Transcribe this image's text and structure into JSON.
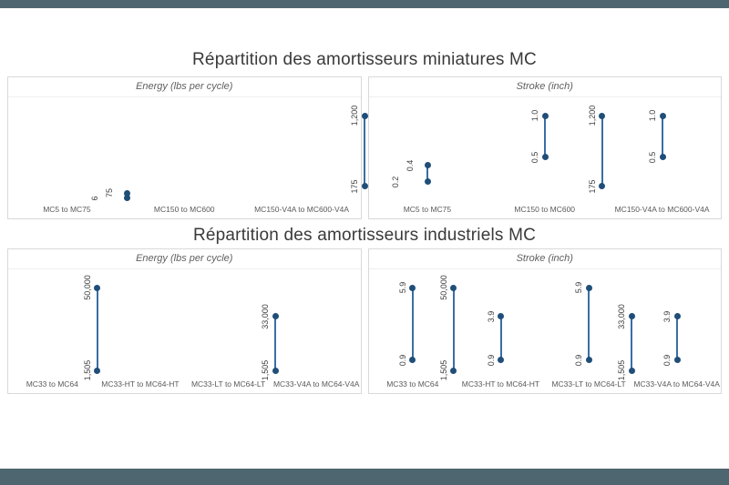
{
  "colors": {
    "accent_bar": "#4e666f",
    "dot": "#1f4e79",
    "line": "#3a6ea5",
    "panel_border": "#d9d9d9",
    "title_text": "#3a3a3a",
    "label_text": "#5a5a5a"
  },
  "chart_data": {
    "type": "dumbbell",
    "description": "Two range (dumbbell) charts, each split into two panels showing min-max ranges per product family",
    "charts": [
      {
        "title": "Répartition des amortisseurs miniatures MC",
        "panels": [
          {
            "header": "Energy (lbs per cycle)",
            "ymax": 1200,
            "items": [
              {
                "category": "MC5 to MC75",
                "min": 6,
                "max": 75,
                "min_label": "6",
                "max_label": "75"
              },
              {
                "category": "MC150 to MC600",
                "min": 175,
                "max": 1200,
                "min_label": "175",
                "max_label": "1,200"
              },
              {
                "category": "MC150-V4A to MC600-V4A",
                "min": 175,
                "max": 1200,
                "min_label": "175",
                "max_label": "1,200"
              }
            ]
          },
          {
            "header": "Stroke (inch)",
            "ymax": 1.0,
            "items": [
              {
                "category": "MC5 to MC75",
                "min": 0.2,
                "max": 0.4,
                "min_label": "0.2",
                "max_label": "0.4"
              },
              {
                "category": "MC150 to MC600",
                "min": 0.5,
                "max": 1.0,
                "min_label": "0.5",
                "max_label": "1.0"
              },
              {
                "category": "MC150-V4A to MC600-V4A",
                "min": 0.5,
                "max": 1.0,
                "min_label": "0.5",
                "max_label": "1.0"
              }
            ]
          }
        ]
      },
      {
        "title": "Répartition des amortisseurs industriels MC",
        "panels": [
          {
            "header": "Energy (lbs per cycle)",
            "ymax": 50000,
            "items": [
              {
                "category": "MC33 to MC64",
                "min": 1505,
                "max": 50000,
                "min_label": "1,505",
                "max_label": "50,000"
              },
              {
                "category": "MC33-HT to MC64-HT",
                "min": 1505,
                "max": 33000,
                "min_label": "1,505",
                "max_label": "33,000"
              },
              {
                "category": "MC33-LT to MC64-LT",
                "min": 1505,
                "max": 50000,
                "min_label": "1,505",
                "max_label": "50,000"
              },
              {
                "category": "MC33-V4A to MC64-V4A",
                "min": 1505,
                "max": 33000,
                "min_label": "1,505",
                "max_label": "33,000"
              }
            ]
          },
          {
            "header": "Stroke (inch)",
            "ymax": 5.9,
            "items": [
              {
                "category": "MC33 to MC64",
                "min": 0.9,
                "max": 5.9,
                "min_label": "0.9",
                "max_label": "5.9"
              },
              {
                "category": "MC33-HT to MC64-HT",
                "min": 0.9,
                "max": 3.9,
                "min_label": "0.9",
                "max_label": "3.9"
              },
              {
                "category": "MC33-LT to MC64-LT",
                "min": 0.9,
                "max": 5.9,
                "min_label": "0.9",
                "max_label": "5.9"
              },
              {
                "category": "MC33-V4A to MC64-V4A",
                "min": 0.9,
                "max": 3.9,
                "min_label": "0.9",
                "max_label": "3.9"
              }
            ]
          }
        ]
      }
    ]
  }
}
